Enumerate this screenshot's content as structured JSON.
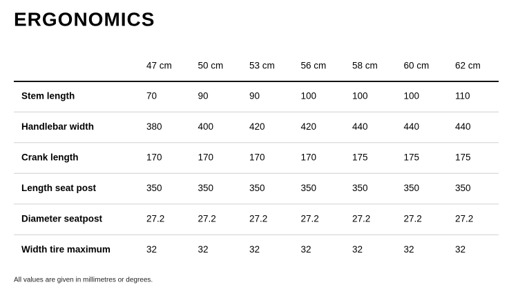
{
  "header": {
    "title": "ERGONOMICS"
  },
  "table": {
    "columns": [
      "47 cm",
      "50 cm",
      "53 cm",
      "56 cm",
      "58 cm",
      "60 cm",
      "62 cm"
    ],
    "rows": [
      {
        "label": "Stem length",
        "cells": [
          "70",
          "90",
          "90",
          "100",
          "100",
          "100",
          "110"
        ]
      },
      {
        "label": "Handlebar width",
        "cells": [
          "380",
          "400",
          "420",
          "420",
          "440",
          "440",
          "440"
        ]
      },
      {
        "label": "Crank length",
        "cells": [
          "170",
          "170",
          "170",
          "170",
          "175",
          "175",
          "175"
        ]
      },
      {
        "label": "Length seat post",
        "cells": [
          "350",
          "350",
          "350",
          "350",
          "350",
          "350",
          "350"
        ]
      },
      {
        "label": "Diameter seatpost",
        "cells": [
          "27.2",
          "27.2",
          "27.2",
          "27.2",
          "27.2",
          "27.2",
          "27.2"
        ]
      },
      {
        "label": "Width tire maximum",
        "cells": [
          "32",
          "32",
          "32",
          "32",
          "32",
          "32",
          "32"
        ]
      }
    ]
  },
  "footnote": "All values are given in millimetres or degrees."
}
